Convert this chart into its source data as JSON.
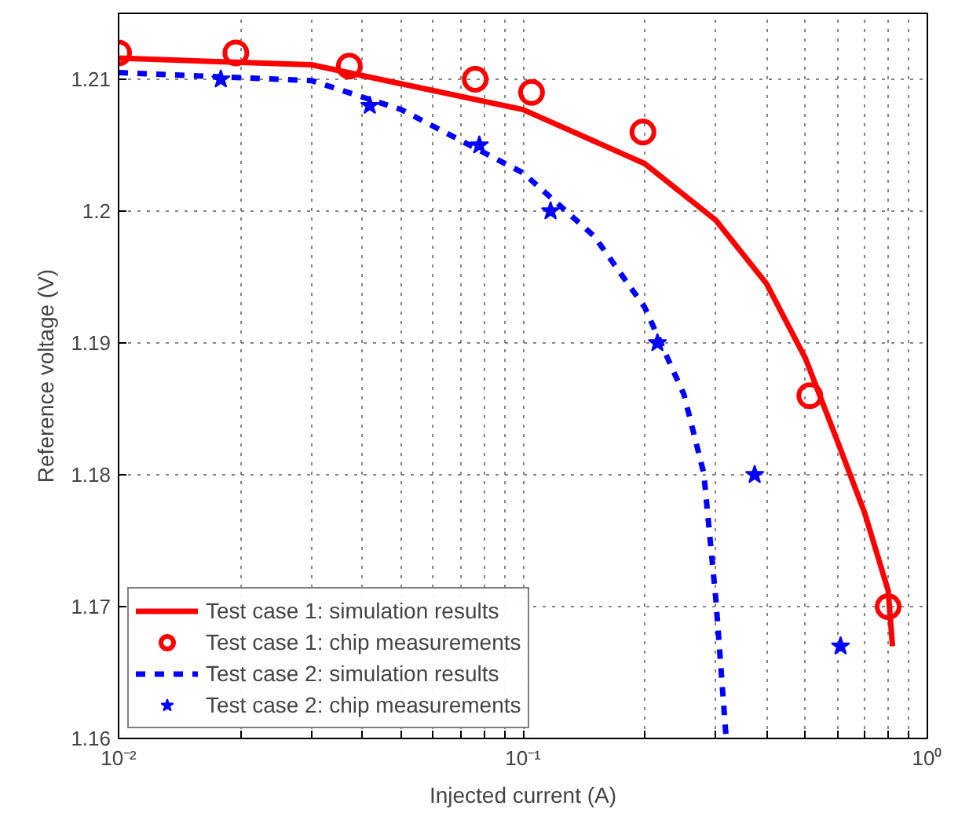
{
  "chart_data": {
    "type": "line",
    "xlabel": "Injected current (A)",
    "ylabel": "Reference voltage (V)",
    "log": "x",
    "xlim": [
      0.01,
      1
    ],
    "ylim": [
      1.16,
      1.215
    ],
    "xticks": [
      {
        "value": 0.01,
        "label": "10⁻²"
      },
      {
        "value": 0.02,
        "label": null
      },
      {
        "value": 0.03,
        "label": null
      },
      {
        "value": 0.04,
        "label": null
      },
      {
        "value": 0.05,
        "label": null
      },
      {
        "value": 0.06,
        "label": null
      },
      {
        "value": 0.07,
        "label": null
      },
      {
        "value": 0.08,
        "label": null
      },
      {
        "value": 0.09,
        "label": null
      },
      {
        "value": 0.1,
        "label": "10⁻¹"
      },
      {
        "value": 0.2,
        "label": null
      },
      {
        "value": 0.3,
        "label": null
      },
      {
        "value": 0.4,
        "label": null
      },
      {
        "value": 0.5,
        "label": null
      },
      {
        "value": 0.6,
        "label": null
      },
      {
        "value": 0.7,
        "label": null
      },
      {
        "value": 0.8,
        "label": null
      },
      {
        "value": 0.9,
        "label": null
      },
      {
        "value": 1,
        "label": "10⁰"
      }
    ],
    "yticks": [
      1.16,
      1.17,
      1.18,
      1.19,
      1.2,
      1.21
    ],
    "grid": true,
    "legend": "bottom left",
    "series": [
      {
        "name": "Test case 1: simulation results",
        "line_style": "solid",
        "color": "#ff0000",
        "x": [
          0.01,
          0.03,
          0.1,
          0.2,
          0.3,
          0.4,
          0.5,
          0.6,
          0.7,
          0.8,
          0.82
        ],
        "values": [
          1.2116,
          1.2111,
          1.2077,
          1.2036,
          1.1993,
          1.1945,
          1.1888,
          1.1825,
          1.1771,
          1.1712,
          1.167
        ]
      },
      {
        "name": "Test case 1: chip measurements",
        "type": "scatter",
        "marker": "circle",
        "color": "#ff0000",
        "x": [
          0.01,
          0.0195,
          0.0372,
          0.0762,
          0.105,
          0.198,
          0.512,
          0.8
        ],
        "values": [
          1.212,
          1.212,
          1.211,
          1.21,
          1.209,
          1.206,
          1.186,
          1.17
        ]
      },
      {
        "name": "Test case 2: simulation results",
        "line_style": "dashed",
        "color": "#0000ff",
        "x": [
          0.01,
          0.03,
          0.05,
          0.1,
          0.15,
          0.2,
          0.25,
          0.28,
          0.3,
          0.318
        ],
        "values": [
          1.2105,
          1.2099,
          1.2077,
          1.2029,
          1.1981,
          1.1927,
          1.1861,
          1.1801,
          1.1705,
          1.16
        ]
      },
      {
        "name": "Test case 2: chip measurements",
        "type": "scatter",
        "marker": "star",
        "color": "#0000ff",
        "x": [
          0.0179,
          0.0418,
          0.078,
          0.117,
          0.215,
          0.374,
          0.61
        ],
        "values": [
          1.21,
          1.208,
          1.205,
          1.2,
          1.19,
          1.18,
          1.167
        ]
      }
    ]
  }
}
